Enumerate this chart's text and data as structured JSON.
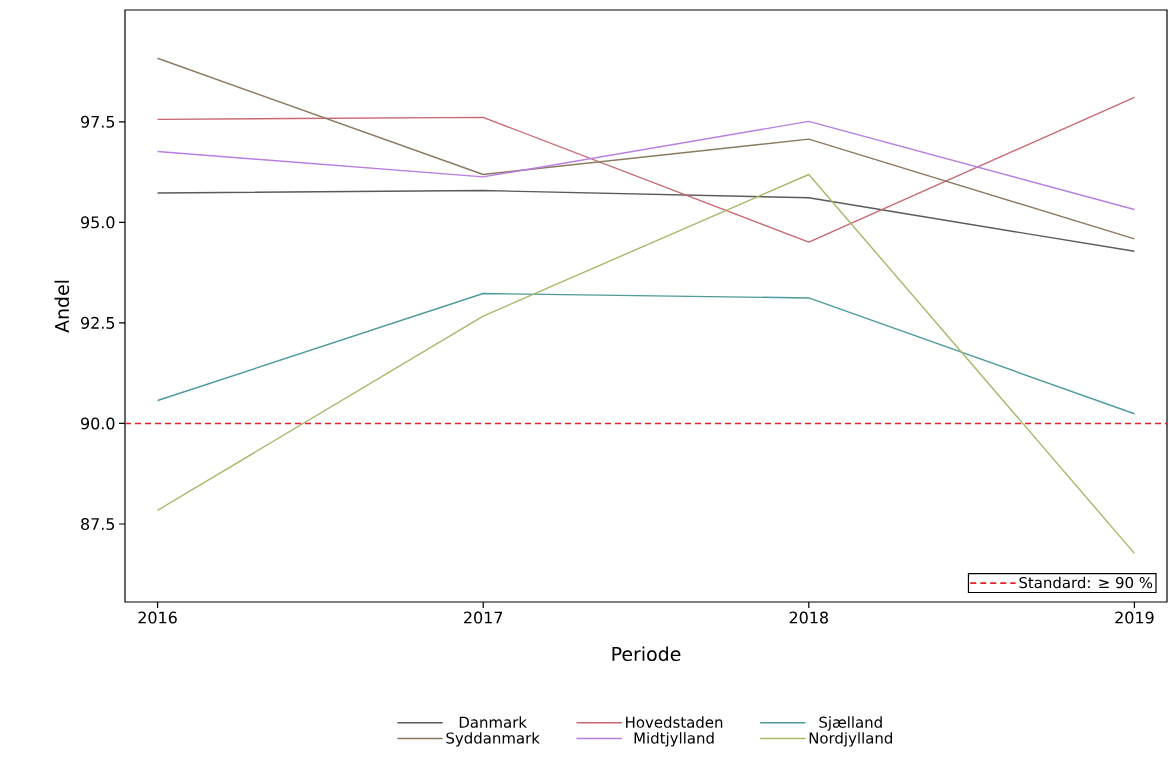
{
  "chart_data": {
    "type": "line",
    "xlabel": "Periode",
    "ylabel": "Andel",
    "x": [
      2016,
      2017,
      2018,
      2019
    ],
    "xlim": [
      2015.9,
      2019.1
    ],
    "xticks": [
      2016,
      2017,
      2018,
      2019
    ],
    "ylim": [
      85.56,
      100.28
    ],
    "yticks": [
      {
        "value": 87.5,
        "label": "87.5"
      },
      {
        "value": 90,
        "label": "90.0"
      },
      {
        "value": 92.5,
        "label": "92.5"
      },
      {
        "value": 95,
        "label": "95.0"
      },
      {
        "value": 97.5,
        "label": "97.5"
      }
    ],
    "series": [
      {
        "name": "Danmark",
        "color": "#5a5a5a",
        "values": [
          95.73,
          95.79,
          95.61,
          94.28
        ]
      },
      {
        "name": "Hovedstaden",
        "color": "#c86873",
        "values": [
          97.56,
          97.61,
          94.51,
          98.11
        ]
      },
      {
        "name": "Sjælland",
        "color": "#4f9a9a",
        "values": [
          90.57,
          93.23,
          93.12,
          90.24
        ]
      },
      {
        "name": "Syddanmark",
        "color": "#8c7a5f",
        "values": [
          99.08,
          96.19,
          97.07,
          94.59
        ]
      },
      {
        "name": "Midtjylland",
        "color": "#b87ee0",
        "values": [
          96.76,
          96.13,
          97.51,
          95.32
        ]
      },
      {
        "name": "Nordjylland",
        "color": "#a8b86a",
        "values": [
          87.84,
          92.67,
          96.19,
          86.77
        ]
      }
    ],
    "ref_lines": [
      {
        "axis": "y",
        "value": 90,
        "label": "Standard: ≥ 90 %",
        "color": "#e8202a",
        "line_style": "dashed"
      }
    ],
    "legend": "bottom"
  }
}
